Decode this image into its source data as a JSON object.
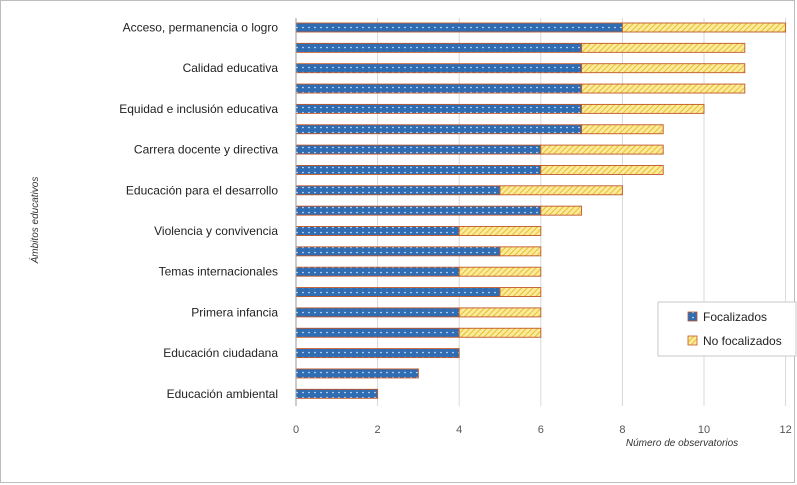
{
  "chart_data": {
    "type": "bar",
    "orientation": "horizontal",
    "stacked": true,
    "ylabel": "Ámbitos educativos",
    "xlabel": "Número de observatorios",
    "xlim": [
      0,
      12
    ],
    "xticks": [
      "0",
      "2",
      "4",
      "6",
      "8",
      "10",
      "12"
    ],
    "grid": true,
    "legend_position": "right",
    "categories": [
      "Acceso, permanencia o logro",
      "",
      "Calidad educativa",
      "",
      "Equidad e inclusión educativa",
      "",
      "Carrera docente y directiva",
      "",
      "Educación para el desarrollo",
      "",
      "Violencia y convivencia",
      "",
      "Temas internacionales",
      "",
      "Primera infancia",
      "",
      "Educación ciudadana",
      "",
      "Educación ambiental"
    ],
    "series": [
      {
        "name": "Focalizados",
        "color": "#2e6db4",
        "values": [
          8,
          7,
          7,
          7,
          7,
          7,
          6,
          6,
          5,
          6,
          4,
          5,
          4,
          5,
          4,
          4,
          4,
          3,
          2
        ]
      },
      {
        "name": "No focalizados",
        "color": "#f6df5f",
        "values": [
          4,
          4,
          4,
          4,
          3,
          2,
          3,
          3,
          3,
          1,
          2,
          1,
          2,
          1,
          2,
          2,
          0,
          0,
          0
        ]
      }
    ]
  }
}
